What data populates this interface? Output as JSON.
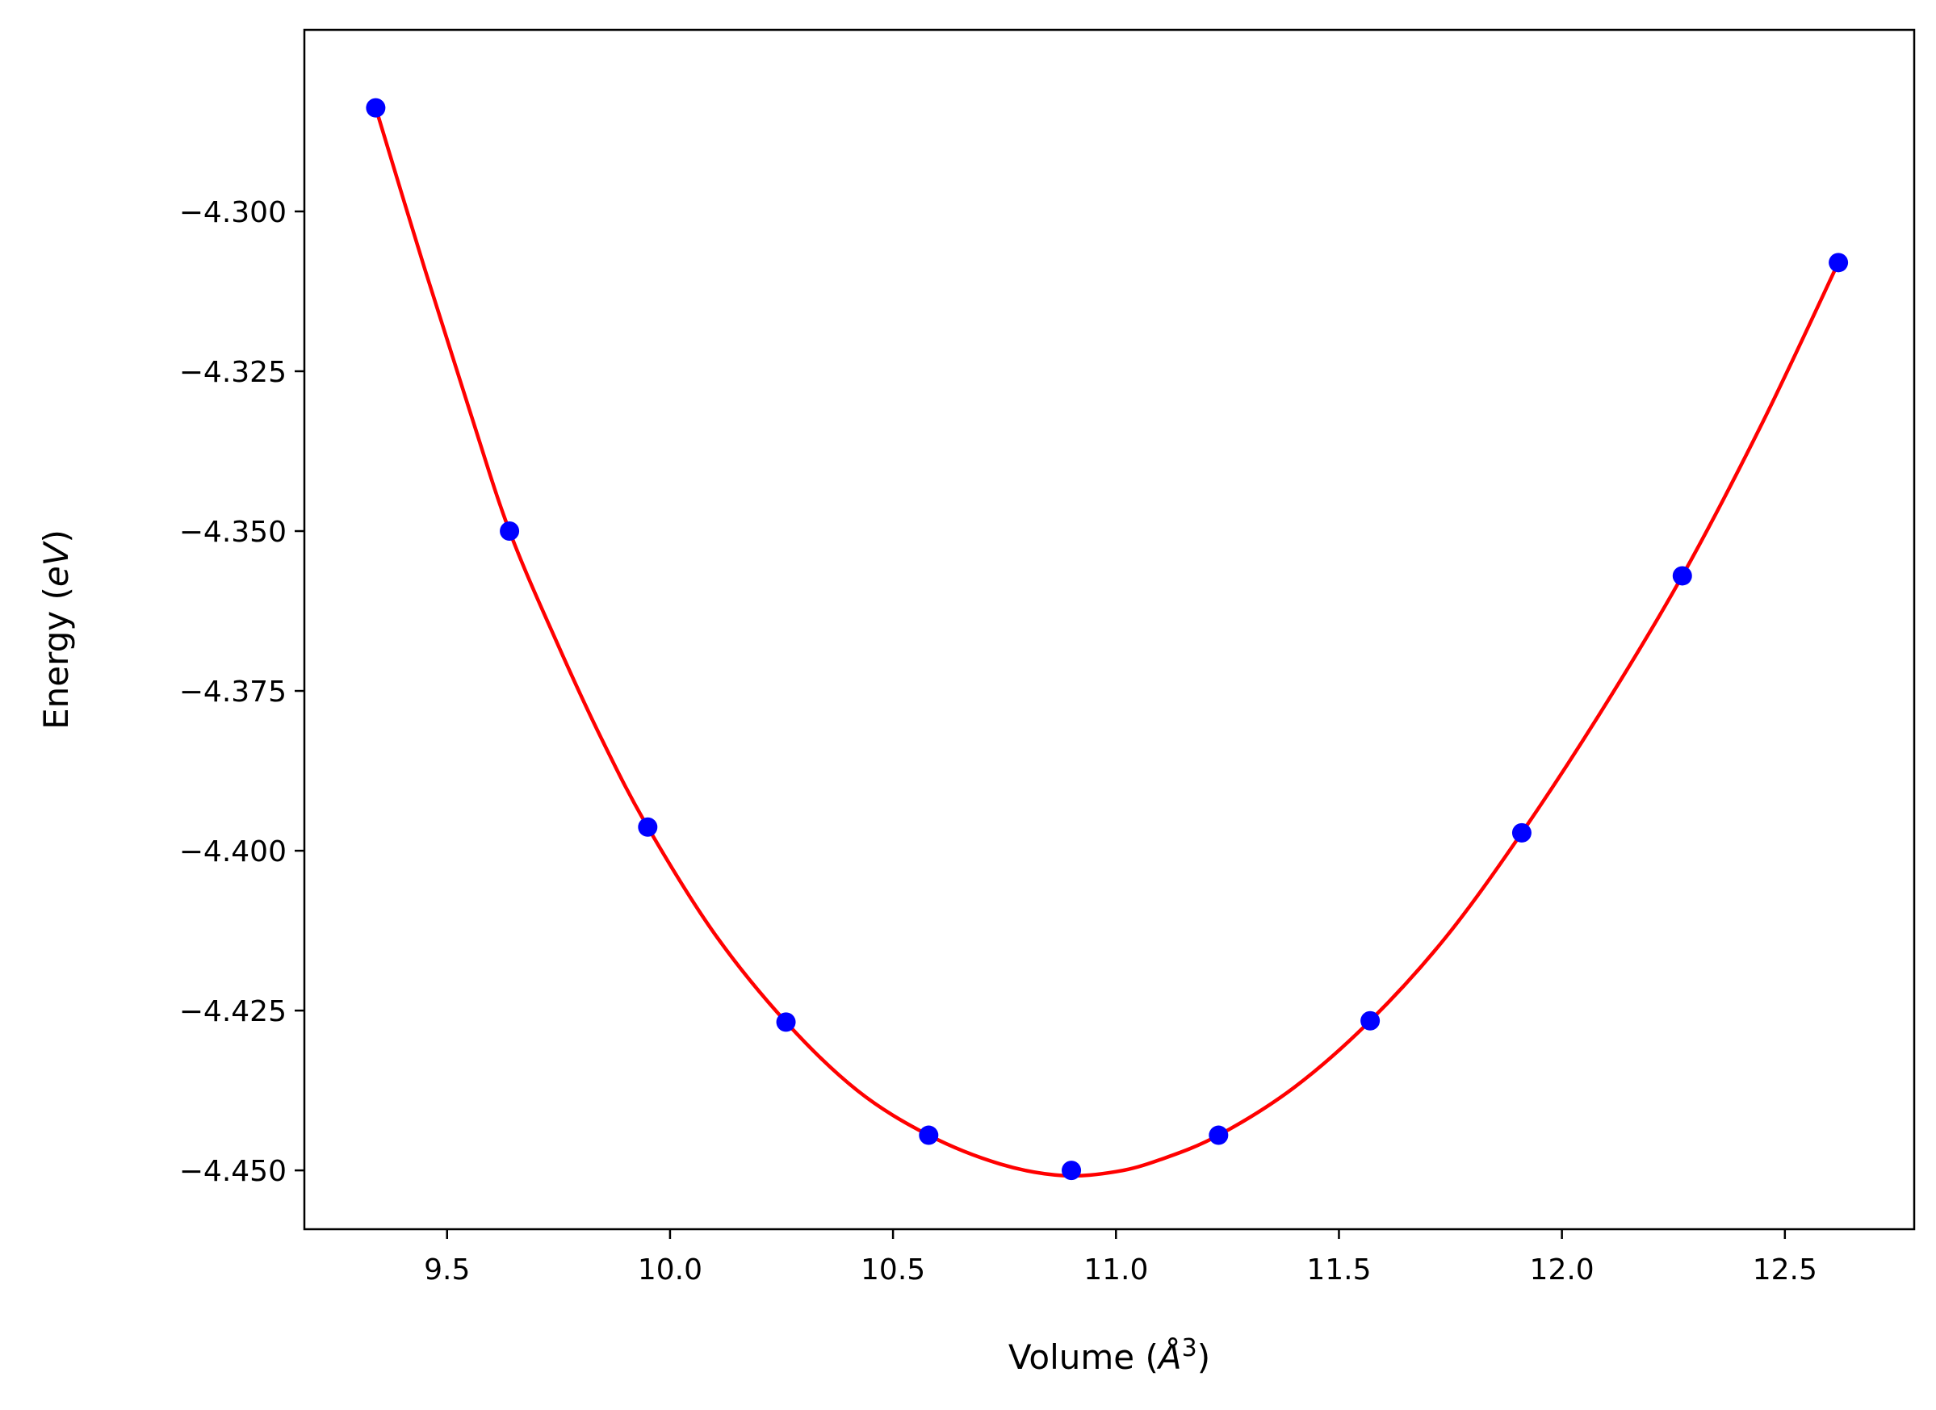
{
  "chart_data": {
    "type": "scatter",
    "title": "",
    "xlabel": "Volume ($\\AA^3$)",
    "ylabel": "Energy ($eV$)",
    "xlabel_display": {
      "pre": "Volume (",
      "symbol": "Å",
      "sup": "3",
      "post": ")"
    },
    "ylabel_display": {
      "pre": "Energy (",
      "italic": "eV",
      "post": ")"
    },
    "xlim": [
      9.18,
      12.79
    ],
    "ylim": [
      -4.4592,
      -4.2716
    ],
    "x_ticks": [
      9.5,
      10.0,
      10.5,
      11.0,
      11.5,
      12.0,
      12.5
    ],
    "x_tick_labels": [
      "9.5",
      "10.0",
      "10.5",
      "11.0",
      "11.5",
      "12.0",
      "12.5"
    ],
    "y_ticks": [
      -4.3,
      -4.325,
      -4.35,
      -4.375,
      -4.4,
      -4.425,
      -4.45
    ],
    "y_tick_labels": [
      "−4.300",
      "−4.325",
      "−4.350",
      "−4.375",
      "−4.400",
      "−4.425",
      "−4.450"
    ],
    "grid": false,
    "legend": "none",
    "series": [
      {
        "kind": "points",
        "color": "#0000ff",
        "x": [
          9.34,
          9.64,
          9.95,
          10.26,
          10.58,
          10.9,
          11.23,
          11.57,
          11.91,
          12.27,
          12.62
        ],
        "y": [
          -4.2838,
          -4.35,
          -4.3963,
          -4.4268,
          -4.4445,
          -4.45,
          -4.4445,
          -4.4266,
          -4.3972,
          -4.357,
          -4.308
        ]
      },
      {
        "kind": "line",
        "color": "#ff0000",
        "x": [
          9.34,
          9.45,
          9.55,
          9.64,
          9.75,
          9.85,
          9.95,
          10.1,
          10.26,
          10.42,
          10.58,
          10.74,
          10.88,
          11.0,
          11.1,
          11.23,
          11.4,
          11.57,
          11.74,
          11.91,
          12.09,
          12.27,
          12.45,
          12.62
        ],
        "y": [
          -4.2838,
          -4.309,
          -4.331,
          -4.35,
          -4.368,
          -4.383,
          -4.3963,
          -4.413,
          -4.4268,
          -4.4375,
          -4.4445,
          -4.449,
          -4.4508,
          -4.4502,
          -4.4483,
          -4.4445,
          -4.437,
          -4.4266,
          -4.4135,
          -4.3972,
          -4.378,
          -4.357,
          -4.333,
          -4.308
        ]
      }
    ]
  }
}
